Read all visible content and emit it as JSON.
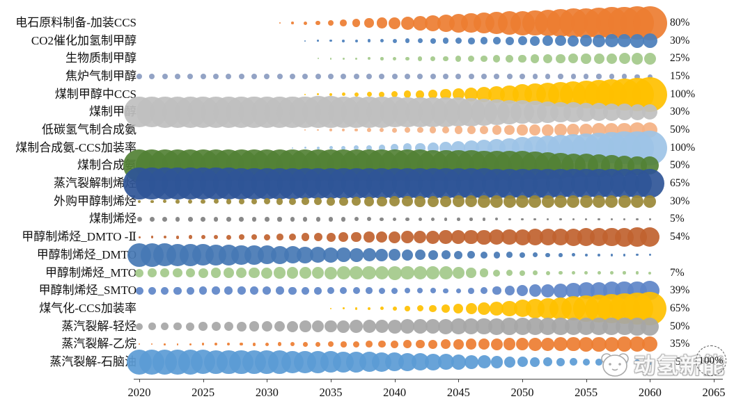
{
  "watermark": {
    "text": "动氢新能"
  },
  "chart_data": {
    "type": "bubble",
    "description": "Penetration-rate bubble timeline of chemical production technologies, yearly bubbles 2020-2060; right-hand labels are 2060 penetration rates; dashed circle is the 100% size reference.",
    "x_ticks": [
      "2020",
      "2025",
      "2030",
      "2035",
      "2040",
      "2045",
      "2050",
      "2055",
      "2060",
      "2065"
    ],
    "x_range": [
      2020,
      2065
    ],
    "bubble_years": [
      2020,
      2060
    ],
    "size_legend_label": "100%",
    "rows": [
      {
        "label": "电石原料制备-加装CCS",
        "pct": "80%",
        "color": "#ED7D31",
        "keyframes": [
          [
            2020,
            0
          ],
          [
            2029,
            0
          ],
          [
            2031,
            2
          ],
          [
            2035,
            8
          ],
          [
            2040,
            17
          ],
          [
            2045,
            27
          ],
          [
            2050,
            35
          ],
          [
            2055,
            43
          ],
          [
            2060,
            49
          ]
        ]
      },
      {
        "label": "CO2催化加氢制甲醇",
        "pct": "30%",
        "color": "#4A7EBB",
        "keyframes": [
          [
            2020,
            0
          ],
          [
            2031,
            0
          ],
          [
            2033,
            2
          ],
          [
            2040,
            6
          ],
          [
            2045,
            9
          ],
          [
            2050,
            13
          ],
          [
            2055,
            17
          ],
          [
            2060,
            21
          ]
        ]
      },
      {
        "label": "生物质制甲醇",
        "pct": "25%",
        "color": "#A3C98A",
        "keyframes": [
          [
            2020,
            0
          ],
          [
            2032,
            0
          ],
          [
            2034,
            2
          ],
          [
            2040,
            5
          ],
          [
            2046,
            9
          ],
          [
            2052,
            13
          ],
          [
            2060,
            17
          ]
        ]
      },
      {
        "label": "焦炉气制甲醇",
        "pct": "15%",
        "color": "#8A9BC0",
        "keyframes": [
          [
            2020,
            8
          ],
          [
            2045,
            8
          ],
          [
            2060,
            7
          ]
        ]
      },
      {
        "label": "煤制甲醇中CCS",
        "pct": "100%",
        "color": "#FFC000",
        "keyframes": [
          [
            2020,
            0
          ],
          [
            2031,
            0
          ],
          [
            2033,
            2
          ],
          [
            2038,
            7
          ],
          [
            2043,
            13
          ],
          [
            2048,
            24
          ],
          [
            2053,
            36
          ],
          [
            2060,
            50
          ]
        ]
      },
      {
        "label": "煤制甲醇",
        "pct": "30%",
        "color": "#BFBFBF",
        "keyframes": [
          [
            2020,
            44
          ],
          [
            2035,
            46
          ],
          [
            2045,
            42
          ],
          [
            2050,
            34
          ],
          [
            2055,
            27
          ],
          [
            2060,
            22
          ]
        ]
      },
      {
        "label": "低碳氢气制合成氨",
        "pct": "50%",
        "color": "#F4B183",
        "keyframes": [
          [
            2020,
            0
          ],
          [
            2031,
            0
          ],
          [
            2033,
            2
          ],
          [
            2040,
            7
          ],
          [
            2046,
            12
          ],
          [
            2052,
            17
          ],
          [
            2060,
            22
          ]
        ]
      },
      {
        "label": "煤制合成氨-CCS加装率",
        "pct": "100%",
        "color": "#9DC3E6",
        "keyframes": [
          [
            2020,
            0
          ],
          [
            2030,
            0
          ],
          [
            2032,
            2
          ],
          [
            2038,
            8
          ],
          [
            2043,
            16
          ],
          [
            2048,
            26
          ],
          [
            2053,
            38
          ],
          [
            2060,
            50
          ]
        ]
      },
      {
        "label": "煤制合成氨",
        "pct": "50%",
        "color": "#538135",
        "keyframes": [
          [
            2020,
            46
          ],
          [
            2042,
            46
          ],
          [
            2050,
            42
          ],
          [
            2055,
            34
          ],
          [
            2060,
            26
          ]
        ]
      },
      {
        "label": "蒸汽裂解制烯烃",
        "pct": "65%",
        "color": "#2F5597",
        "keyframes": [
          [
            2020,
            46
          ],
          [
            2040,
            44
          ],
          [
            2050,
            43
          ],
          [
            2060,
            42
          ]
        ]
      },
      {
        "label": "外购甲醇制烯烃",
        "pct": "30%",
        "color": "#9A8836",
        "keyframes": [
          [
            2020,
            4
          ],
          [
            2030,
            9
          ],
          [
            2040,
            15
          ],
          [
            2048,
            18
          ],
          [
            2060,
            18
          ]
        ]
      },
      {
        "label": "煤制烯烃",
        "pct": "5%",
        "color": "#7F7F7F",
        "keyframes": [
          [
            2020,
            7
          ],
          [
            2038,
            6
          ],
          [
            2048,
            4
          ],
          [
            2060,
            3
          ]
        ]
      },
      {
        "label": "甲醇制烯烃_DMTO -Ⅱ",
        "pct": "54%",
        "color": "#C0622F",
        "keyframes": [
          [
            2020,
            3
          ],
          [
            2030,
            9
          ],
          [
            2040,
            17
          ],
          [
            2050,
            23
          ],
          [
            2060,
            28
          ]
        ]
      },
      {
        "label": "甲醇制烯烃_DMTO",
        "pct": "",
        "color": "#4678B4",
        "keyframes": [
          [
            2020,
            34
          ],
          [
            2025,
            31
          ],
          [
            2030,
            27
          ],
          [
            2035,
            22
          ],
          [
            2040,
            17
          ],
          [
            2045,
            12
          ],
          [
            2050,
            8
          ],
          [
            2055,
            4
          ],
          [
            2060,
            3
          ]
        ]
      },
      {
        "label": "甲醇制烯烃_MTO",
        "pct": "7%",
        "color": "#A3C98A",
        "keyframes": [
          [
            2020,
            12
          ],
          [
            2030,
            16
          ],
          [
            2040,
            20
          ],
          [
            2044,
            19
          ],
          [
            2048,
            10
          ],
          [
            2052,
            6
          ],
          [
            2060,
            4
          ]
        ]
      },
      {
        "label": "甲醇制烯烃_SMTO",
        "pct": "39%",
        "color": "#5E86C8",
        "keyframes": [
          [
            2020,
            11
          ],
          [
            2030,
            12
          ],
          [
            2040,
            9
          ],
          [
            2045,
            7
          ],
          [
            2050,
            16
          ],
          [
            2055,
            24
          ],
          [
            2060,
            28
          ]
        ]
      },
      {
        "label": "煤气化-CCS加装率",
        "pct": "65%",
        "color": "#FFC000",
        "keyframes": [
          [
            2020,
            0
          ],
          [
            2033,
            0
          ],
          [
            2035,
            2
          ],
          [
            2040,
            6
          ],
          [
            2044,
            12
          ],
          [
            2048,
            20
          ],
          [
            2052,
            30
          ],
          [
            2056,
            40
          ],
          [
            2060,
            48
          ]
        ]
      },
      {
        "label": "蒸汽裂解-轻烃",
        "pct": "50%",
        "color": "#A6A6A6",
        "keyframes": [
          [
            2020,
            10
          ],
          [
            2030,
            15
          ],
          [
            2040,
            20
          ],
          [
            2050,
            25
          ],
          [
            2060,
            26
          ]
        ]
      },
      {
        "label": "蒸汽裂解-乙烷",
        "pct": "35%",
        "color": "#ED7D31",
        "keyframes": [
          [
            2020,
            2
          ],
          [
            2030,
            5
          ],
          [
            2040,
            11
          ],
          [
            2048,
            17
          ],
          [
            2055,
            21
          ],
          [
            2060,
            22
          ]
        ]
      },
      {
        "label": "蒸汽裂解-石脑油",
        "pct": "15%",
        "color": "#5B9BD5",
        "keyframes": [
          [
            2020,
            36
          ],
          [
            2030,
            34
          ],
          [
            2038,
            29
          ],
          [
            2044,
            23
          ],
          [
            2050,
            15
          ],
          [
            2055,
            10
          ],
          [
            2060,
            8
          ]
        ]
      }
    ]
  }
}
